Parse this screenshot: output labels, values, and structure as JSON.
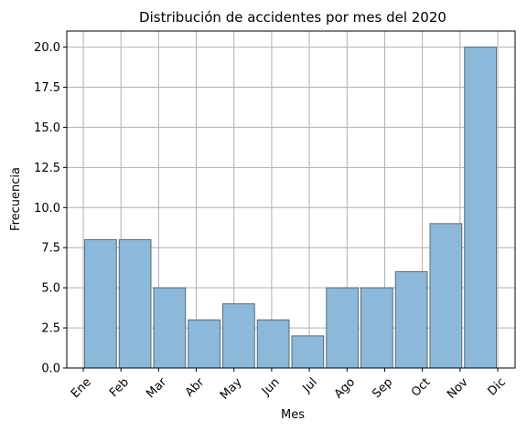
{
  "chart_data": {
    "type": "bar",
    "title": "Distribución de accidentes por mes del 2020",
    "xlabel": "Mes",
    "ylabel": "Frecuencia",
    "x_tick_labels": [
      "Ene",
      "Feb",
      "Mar",
      "Abr",
      "May",
      "Jun",
      "Jul",
      "Ago",
      "Sep",
      "Oct",
      "Nov",
      "Dic"
    ],
    "values": [
      8,
      8,
      5,
      3,
      4,
      3,
      2,
      5,
      5,
      6,
      9,
      20
    ],
    "y_ticks": [
      "0.0",
      "2.5",
      "5.0",
      "7.5",
      "10.0",
      "12.5",
      "15.0",
      "17.5",
      "20.0"
    ],
    "ylim": [
      0,
      21
    ],
    "grid": true,
    "colors": {
      "bar_fill": "#8cb9d9",
      "bar_edge": "#5a6a7a",
      "grid": "#b0b0b0"
    }
  }
}
